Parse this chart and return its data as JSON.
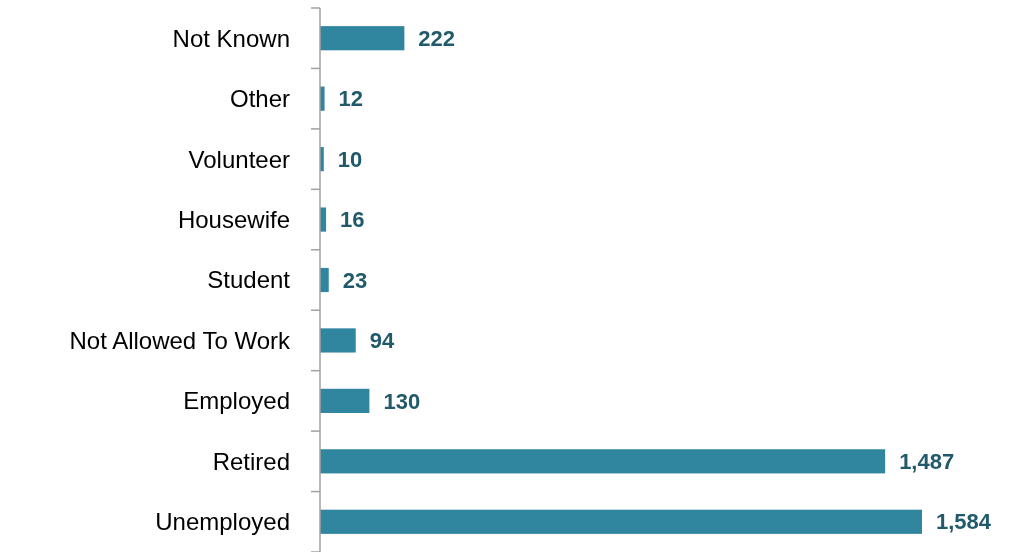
{
  "chart_data": {
    "type": "bar",
    "orientation": "horizontal",
    "categories": [
      "Not Known",
      "Other",
      "Volunteer",
      "Housewife",
      "Student",
      "Not Allowed To Work",
      "Employed",
      "Retired",
      "Unemployed"
    ],
    "values": [
      222,
      12,
      10,
      16,
      23,
      94,
      130,
      1487,
      1584
    ],
    "value_labels": [
      "222",
      "12",
      "10",
      "16",
      "23",
      "94",
      "130",
      "1,487",
      "1,584"
    ],
    "color": "#31869f"
  }
}
